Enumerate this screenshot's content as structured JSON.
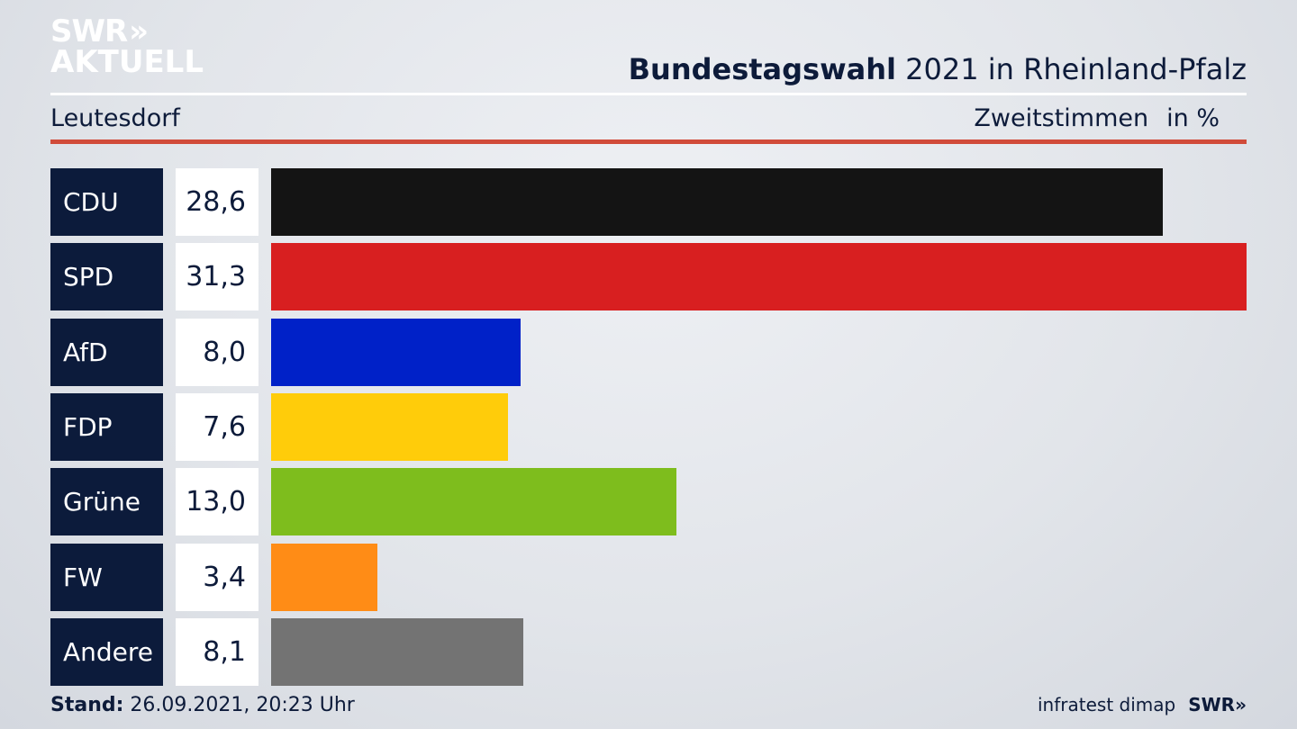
{
  "header": {
    "logo_line1": "SWR",
    "logo_chevrons": "»",
    "logo_line2": "AKTUELL",
    "title_bold": "Bundestagswahl",
    "title_rest": " 2021 in Rheinland-Pfalz",
    "subtitle": "Leutesdorf",
    "metric": "Zweitstimmen",
    "unit": "in %"
  },
  "footer": {
    "stand_label": "Stand:",
    "stand_value": " 26.09.2021, 20:23 Uhr",
    "source": "infratest dimap",
    "broadcaster": "SWR»"
  },
  "chart_data": {
    "type": "bar",
    "orientation": "horizontal",
    "categories": [
      "CDU",
      "SPD",
      "AfD",
      "FDP",
      "Grüne",
      "FW",
      "Andere"
    ],
    "values": [
      28.6,
      31.3,
      8.0,
      7.6,
      13.0,
      3.4,
      8.1
    ],
    "value_labels": [
      "28,6",
      "31,3",
      "8,0",
      "7,6",
      "13,0",
      "3,4",
      "8,1"
    ],
    "colors": [
      "#141414",
      "#d81f20",
      "#0021c8",
      "#ffcc0a",
      "#7ebd1d",
      "#ff8c16",
      "#737373"
    ],
    "xlim": [
      0,
      31.3
    ],
    "grid": false,
    "legend": "none"
  }
}
